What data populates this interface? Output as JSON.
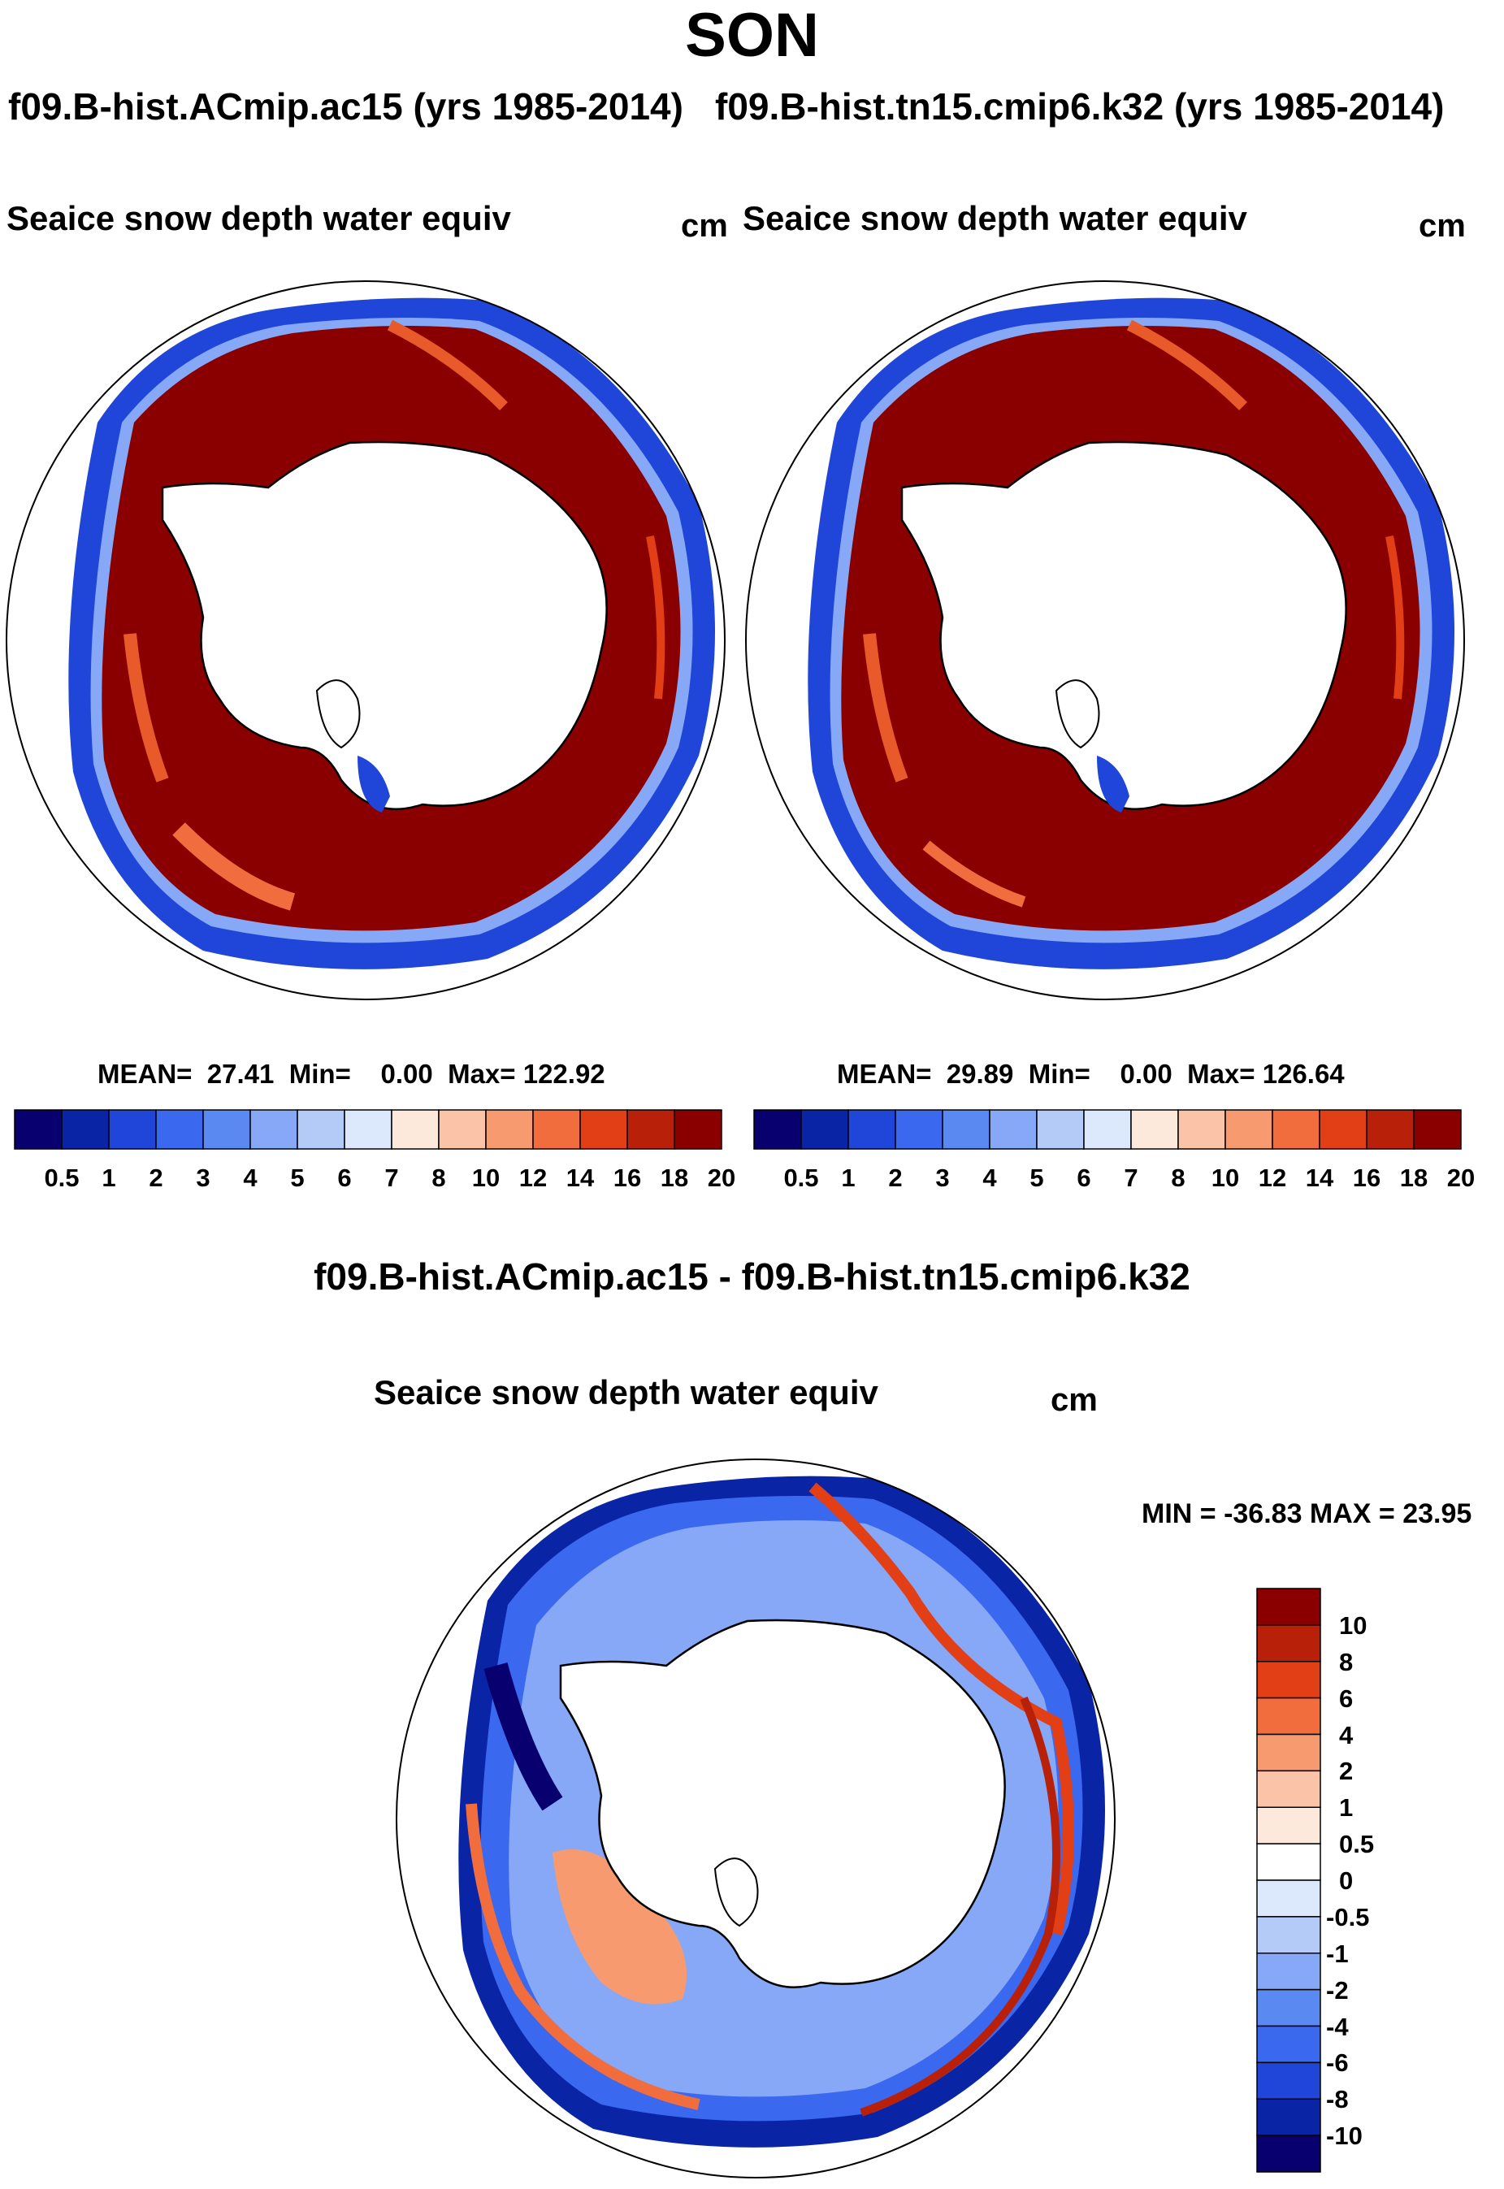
{
  "page": {
    "season": "SON"
  },
  "left_panel": {
    "case_title": "f09.B-hist.ACmip.ac15 (yrs 1985-2014)",
    "var_title": "Seaice snow depth water equiv",
    "units": "cm",
    "stats": {
      "mean_label": "MEAN=",
      "mean": "27.41",
      "min_label": "Min=",
      "min": "0.00",
      "max_label": "Max=",
      "max": "122.92"
    }
  },
  "right_panel": {
    "case_title": "f09.B-hist.tn15.cmip6.k32 (yrs 1985-2014)",
    "var_title": "Seaice snow depth water equiv",
    "units": "cm",
    "stats": {
      "mean_label": "MEAN=",
      "mean": "29.89",
      "min_label": "Min=",
      "min": "0.00",
      "max_label": "Max=",
      "max": "126.64"
    }
  },
  "colorbar_abs": {
    "levels": [
      "0.5",
      "1",
      "2",
      "3",
      "4",
      "5",
      "6",
      "7",
      "8",
      "10",
      "12",
      "14",
      "16",
      "18",
      "20"
    ],
    "colors": [
      "#08006e",
      "#0a24a6",
      "#1f46d8",
      "#3a68ee",
      "#5b89f2",
      "#86a8f6",
      "#b4cbf8",
      "#dce9fc",
      "#fde8dc",
      "#fbc3a8",
      "#f89a70",
      "#f26d3e",
      "#e33f16",
      "#b8200a",
      "#8a0000"
    ]
  },
  "diff_panel": {
    "title": "f09.B-hist.ACmip.ac15 - f09.B-hist.tn15.cmip6.k32",
    "var_title": "Seaice snow depth water equiv",
    "units": "cm",
    "minmax": "MIN = -36.83 MAX =  23.95"
  },
  "colorbar_diff": {
    "levels": [
      "10",
      "8",
      "6",
      "4",
      "2",
      "1",
      "0.5",
      "0",
      "-0.5",
      "-1",
      "-2",
      "-4",
      "-6",
      "-8",
      "-10"
    ],
    "colors": [
      "#8a0000",
      "#b8200a",
      "#e33f16",
      "#f26d3e",
      "#f89a70",
      "#fbc3a8",
      "#fde8dc",
      "#ffffff",
      "#dce9fc",
      "#b4cbf8",
      "#86a8f6",
      "#5b89f2",
      "#3a68ee",
      "#1f46d8",
      "#0a24a6",
      "#08006e"
    ]
  },
  "map_colors": {
    "ice_thick": "#8a0000",
    "ice_mid": "#e85a2a",
    "ice_edge_blue": "#1f46d8",
    "ice_edge_dark": "#0a24a6",
    "diff_neg_mid": "#3a68ee",
    "diff_neg_light": "#86a8f6",
    "diff_pos": "#f26d3e",
    "diff_pos_light": "#f89a70"
  }
}
